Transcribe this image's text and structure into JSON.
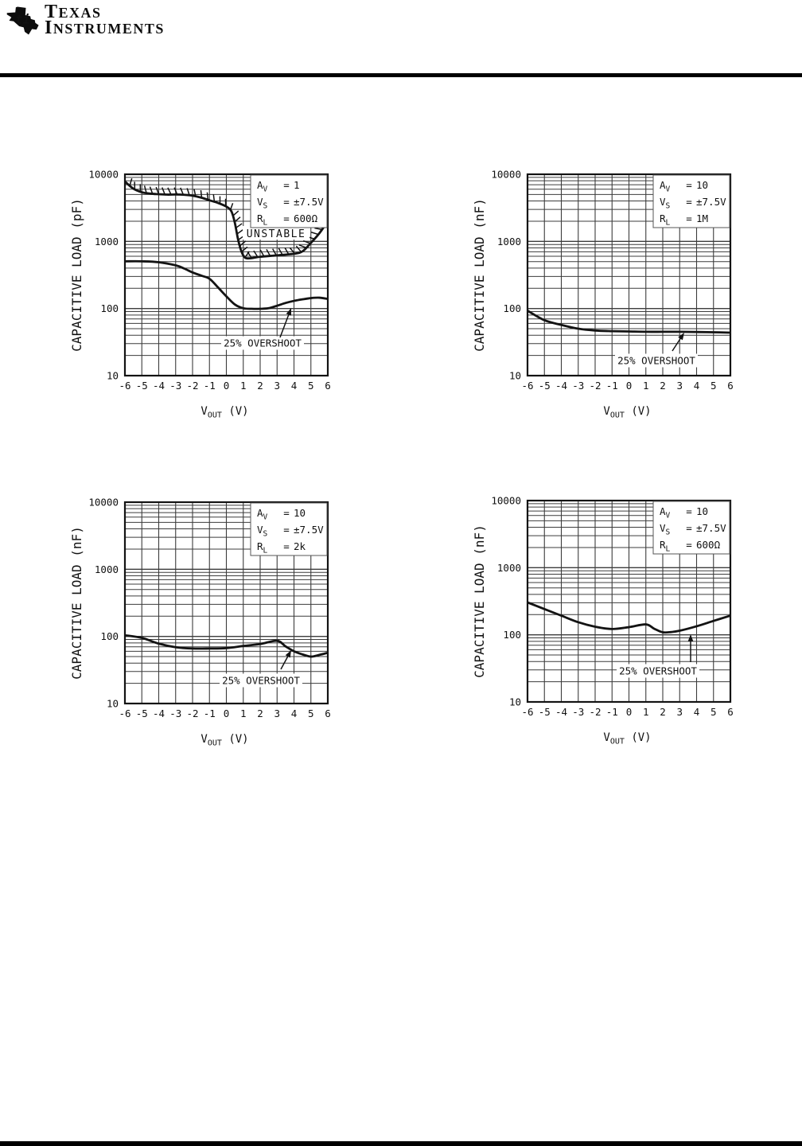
{
  "header": {
    "brand_line1": "TEXAS",
    "brand_line2": "INSTRUMENTS",
    "logo_icon": "ti-texas-state-mark"
  },
  "chart_data": [
    {
      "type": "line",
      "name": "capacitive-load-vs-vout-av1-rl600",
      "ylabel": "CAPACITIVE LOAD (pF)",
      "xlabel": {
        "base": "V",
        "sub": "OUT",
        "suffix": " (V)"
      },
      "xlim": [
        -6,
        6
      ],
      "xticks": [
        -6,
        -5,
        -4,
        -3,
        -2,
        -1,
        0,
        1,
        2,
        3,
        4,
        5,
        6
      ],
      "ylog": true,
      "ylim": [
        10,
        10000
      ],
      "yticks": [
        "10",
        "100",
        "1000",
        "10000"
      ],
      "grid": true,
      "conditions": [
        {
          "sym": "A",
          "sub": "V",
          "value": "1"
        },
        {
          "sym": "V",
          "sub": "S",
          "value": "±7.5V"
        },
        {
          "sym": "R",
          "sub": "L",
          "value": "600Ω"
        }
      ],
      "region_label": {
        "text": "UNSTABLE",
        "center": [
          190,
          74
        ]
      },
      "callout": {
        "text": "25% OVERSHOOT",
        "center": [
          173,
          212
        ],
        "arrow_tail": [
          195,
          205
        ],
        "arrow_tip": [
          209,
          168
        ]
      },
      "series": [
        {
          "name": "unstable-region-boundary",
          "hatched": true,
          "points": [
            [
              -6,
              7800
            ],
            [
              -5.5,
              6100
            ],
            [
              -5,
              5400
            ],
            [
              -4.5,
              5150
            ],
            [
              -4,
              5050
            ],
            [
              -3.5,
              4980
            ],
            [
              -3,
              5000
            ],
            [
              -2.5,
              4950
            ],
            [
              -2,
              4800
            ],
            [
              -1.5,
              4500
            ],
            [
              -1,
              4100
            ],
            [
              -0.5,
              3750
            ],
            [
              0,
              3300
            ],
            [
              0.3,
              2800
            ],
            [
              0.5,
              1900
            ],
            [
              0.7,
              1050
            ],
            [
              0.9,
              700
            ],
            [
              1.1,
              575
            ],
            [
              1.4,
              560
            ],
            [
              2,
              590
            ],
            [
              3,
              620
            ],
            [
              4,
              655
            ],
            [
              4.5,
              710
            ],
            [
              5,
              950
            ],
            [
              5.5,
              1320
            ],
            [
              6,
              2000
            ]
          ]
        },
        {
          "name": "overshoot-25pct",
          "hatched": false,
          "points": [
            [
              -6,
              505
            ],
            [
              -5,
              505
            ],
            [
              -4,
              490
            ],
            [
              -3,
              440
            ],
            [
              -2.5,
              395
            ],
            [
              -2,
              345
            ],
            [
              -1.5,
              310
            ],
            [
              -1,
              278
            ],
            [
              -0.5,
              207
            ],
            [
              0,
              152
            ],
            [
              0.5,
              115
            ],
            [
              1,
              101
            ],
            [
              1.5,
              99
            ],
            [
              2,
              99
            ],
            [
              2.5,
              101
            ],
            [
              3,
              110
            ],
            [
              3.5,
              121
            ],
            [
              4,
              130
            ],
            [
              4.5,
              137
            ],
            [
              5,
              143
            ],
            [
              5.5,
              145
            ],
            [
              6,
              139
            ]
          ]
        }
      ]
    },
    {
      "type": "line",
      "name": "capacitive-load-vs-vout-av10-rl1m",
      "ylabel": "CAPACITIVE LOAD (nF)",
      "xlabel": {
        "base": "V",
        "sub": "OUT",
        "suffix": " (V)"
      },
      "xlim": [
        -6,
        6
      ],
      "xticks": [
        -6,
        -5,
        -4,
        -3,
        -2,
        -1,
        0,
        1,
        2,
        3,
        4,
        5,
        6
      ],
      "ylog": true,
      "ylim": [
        10,
        10000
      ],
      "yticks": [
        "10",
        "100",
        "1000",
        "10000"
      ],
      "grid": true,
      "conditions": [
        {
          "sym": "A",
          "sub": "V",
          "value": "10"
        },
        {
          "sym": "V",
          "sub": "S",
          "value": "±7.5V"
        },
        {
          "sym": "R",
          "sub": "L",
          "value": "1M"
        }
      ],
      "region_label": null,
      "callout": {
        "text": "25% OVERSHOOT",
        "center": [
          162,
          234
        ],
        "arrow_tail": [
          182,
          222
        ],
        "arrow_tip": [
          197,
          199
        ]
      },
      "series": [
        {
          "name": "overshoot-25pct",
          "hatched": false,
          "points": [
            [
              -6,
              93
            ],
            [
              -5,
              67
            ],
            [
              -4,
              57
            ],
            [
              -3,
              50
            ],
            [
              -2,
              47
            ],
            [
              -1,
              46
            ],
            [
              0,
              45.5
            ],
            [
              1,
              45
            ],
            [
              2,
              45
            ],
            [
              3,
              45
            ],
            [
              4,
              44.7
            ],
            [
              5,
              44.3
            ],
            [
              6,
              43.7
            ]
          ]
        }
      ]
    },
    {
      "type": "line",
      "name": "capacitive-load-vs-vout-av10-rl2k",
      "ylabel": "CAPACITIVE LOAD (nF)",
      "xlabel": {
        "base": "V",
        "sub": "OUT",
        "suffix": " (V)"
      },
      "xlim": [
        -6,
        6
      ],
      "xticks": [
        -6,
        -5,
        -4,
        -3,
        -2,
        -1,
        0,
        1,
        2,
        3,
        4,
        5,
        6
      ],
      "ylog": true,
      "ylim": [
        10,
        10000
      ],
      "yticks": [
        "10",
        "100",
        "1000",
        "10000"
      ],
      "grid": true,
      "conditions": [
        {
          "sym": "A",
          "sub": "V",
          "value": "10"
        },
        {
          "sym": "V",
          "sub": "S",
          "value": "±7.5V"
        },
        {
          "sym": "R",
          "sub": "L",
          "value": "2k"
        }
      ],
      "region_label": null,
      "callout": {
        "text": "25% OVERSHOOT",
        "center": [
          171,
          224
        ],
        "arrow_tail": [
          196,
          210
        ],
        "arrow_tip": [
          209,
          186
        ]
      },
      "series": [
        {
          "name": "overshoot-25pct",
          "hatched": false,
          "points": [
            [
              -6,
              104
            ],
            [
              -5,
              95
            ],
            [
              -4,
              78
            ],
            [
              -3,
              69
            ],
            [
              -2,
              66
            ],
            [
              -1,
              66
            ],
            [
              0,
              67
            ],
            [
              1,
              72
            ],
            [
              2,
              77
            ],
            [
              3,
              86
            ],
            [
              3.5,
              71
            ],
            [
              4,
              60
            ],
            [
              4.5,
              54
            ],
            [
              5,
              50
            ],
            [
              5.5,
              53
            ],
            [
              6,
              57
            ]
          ]
        }
      ]
    },
    {
      "type": "line",
      "name": "capacitive-load-vs-vout-av10-rl600",
      "ylabel": "CAPACITIVE LOAD (nF)",
      "xlabel": {
        "base": "V",
        "sub": "OUT",
        "suffix": " (V)"
      },
      "xlim": [
        -6,
        6
      ],
      "xticks": [
        -6,
        -5,
        -4,
        -3,
        -2,
        -1,
        0,
        1,
        2,
        3,
        4,
        5,
        6
      ],
      "ylog": true,
      "ylim": [
        10,
        10000
      ],
      "yticks": [
        "10",
        "100",
        "1000",
        "10000"
      ],
      "grid": true,
      "conditions": [
        {
          "sym": "A",
          "sub": "V",
          "value": "10"
        },
        {
          "sym": "V",
          "sub": "S",
          "value": "±7.5V"
        },
        {
          "sym": "R",
          "sub": "L",
          "value": "600Ω"
        }
      ],
      "region_label": null,
      "callout": {
        "text": "25% OVERSHOOT",
        "center": [
          164,
          214
        ],
        "arrow_tail": [
          205,
          203
        ],
        "arrow_tip": [
          205,
          168
        ]
      },
      "series": [
        {
          "name": "overshoot-25pct",
          "hatched": false,
          "points": [
            [
              -6,
              304
            ],
            [
              -5,
              242
            ],
            [
              -4,
              193
            ],
            [
              -3,
              154
            ],
            [
              -2,
              132
            ],
            [
              -1,
              122
            ],
            [
              0,
              130
            ],
            [
              1,
              143
            ],
            [
              1.5,
              123
            ],
            [
              2,
              109
            ],
            [
              2.5,
              110
            ],
            [
              3,
              115
            ],
            [
              4,
              134
            ],
            [
              5,
              161
            ],
            [
              6,
              193
            ]
          ]
        }
      ]
    }
  ]
}
